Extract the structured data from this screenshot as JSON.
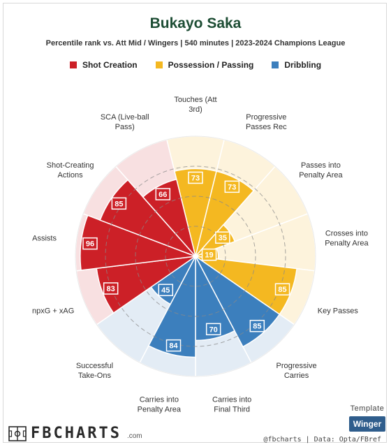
{
  "chart_data": {
    "type": "radar",
    "title": "Bukayo Saka",
    "subtitle": "Percentile rank vs. Att Mid / Wingers | 540 minutes | 2023-2024 Champions League",
    "rlim": [
      0,
      100
    ],
    "grid": true,
    "legend_placement": "top",
    "groups": [
      {
        "name": "Shot Creation",
        "color": "#cc2027",
        "light": "#f8e0e1"
      },
      {
        "name": "Possession / Passing",
        "color": "#f4b821",
        "light": "#fdf3dc"
      },
      {
        "name": "Dribbling",
        "color": "#3c7fbd",
        "light": "#e3ecf5"
      }
    ],
    "metrics": [
      {
        "label": "Touches (Att 3rd)",
        "value": 73,
        "group": 1
      },
      {
        "label": "Progressive Passes Rec",
        "value": 73,
        "group": 1
      },
      {
        "label": "Passes into Penalty Area",
        "value": 35,
        "group": 1
      },
      {
        "label": "Crosses into Penalty Area",
        "value": 19,
        "group": 1
      },
      {
        "label": "Key Passes",
        "value": 85,
        "group": 1
      },
      {
        "label": "Progressive Carries",
        "value": 85,
        "group": 2
      },
      {
        "label": "Carries into Final Third",
        "value": 70,
        "group": 2
      },
      {
        "label": "Carries into Penalty Area",
        "value": 84,
        "group": 2
      },
      {
        "label": "Successful Take-Ons",
        "value": 45,
        "group": 2
      },
      {
        "label": "npxG + xAG",
        "value": 83,
        "group": 0
      },
      {
        "label": "Assists",
        "value": 96,
        "group": 0
      },
      {
        "label": "Shot-Creating Actions",
        "value": 85,
        "group": 0
      },
      {
        "label": "SCA (Live-ball Pass)",
        "value": 66,
        "group": 0
      }
    ]
  },
  "branding": {
    "template_label": "Template",
    "template_name": "Winger",
    "logo_text": "FBCHARTS",
    "logo_suffix": ".com",
    "credit": "@fbcharts | Data: Opta/FBref"
  }
}
